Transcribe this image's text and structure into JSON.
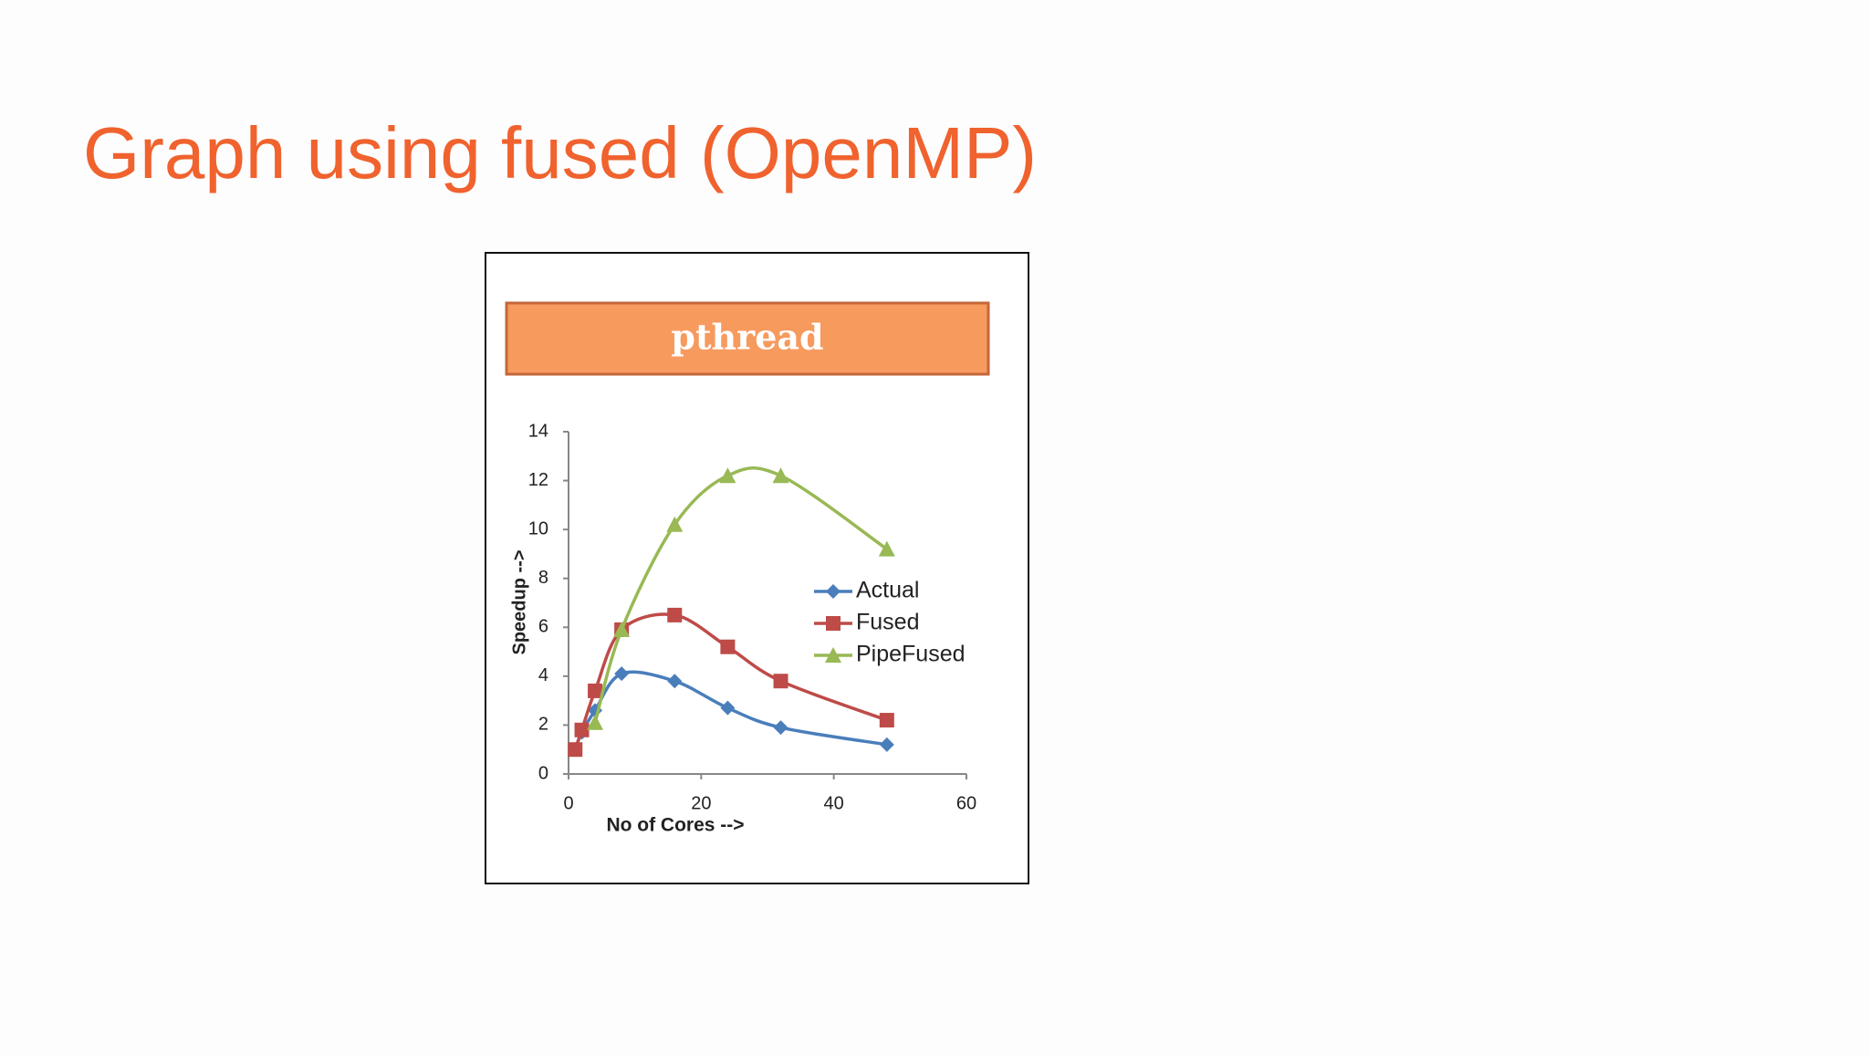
{
  "page_title": "Graph using fused (OpenMP)",
  "chart_data": {
    "type": "line",
    "title": "pthread",
    "x_label": "No of Cores -->",
    "y_label": "Speedup -->",
    "x": [
      1,
      2,
      4,
      8,
      16,
      24,
      32,
      48
    ],
    "series": [
      {
        "name": "Actual",
        "color": "#4a7ebb",
        "marker": "diamond",
        "values": [
          1,
          1.7,
          2.6,
          4.1,
          3.8,
          2.7,
          1.9,
          1.2
        ]
      },
      {
        "name": "Fused",
        "color": "#be4b48",
        "marker": "square",
        "values": [
          1,
          1.8,
          3.4,
          5.9,
          6.5,
          5.2,
          3.8,
          2.2
        ]
      },
      {
        "name": "PipeFused",
        "color": "#98b954",
        "marker": "triangle",
        "values": [
          null,
          null,
          2.1,
          5.9,
          10.2,
          12.2,
          12.2,
          9.2
        ]
      }
    ],
    "xlim": [
      0,
      60
    ],
    "ylim": [
      0,
      14
    ],
    "xticks": [
      0,
      20,
      40,
      60
    ],
    "yticks": [
      0,
      2,
      4,
      6,
      8,
      10,
      12,
      14
    ],
    "legend": "right"
  }
}
